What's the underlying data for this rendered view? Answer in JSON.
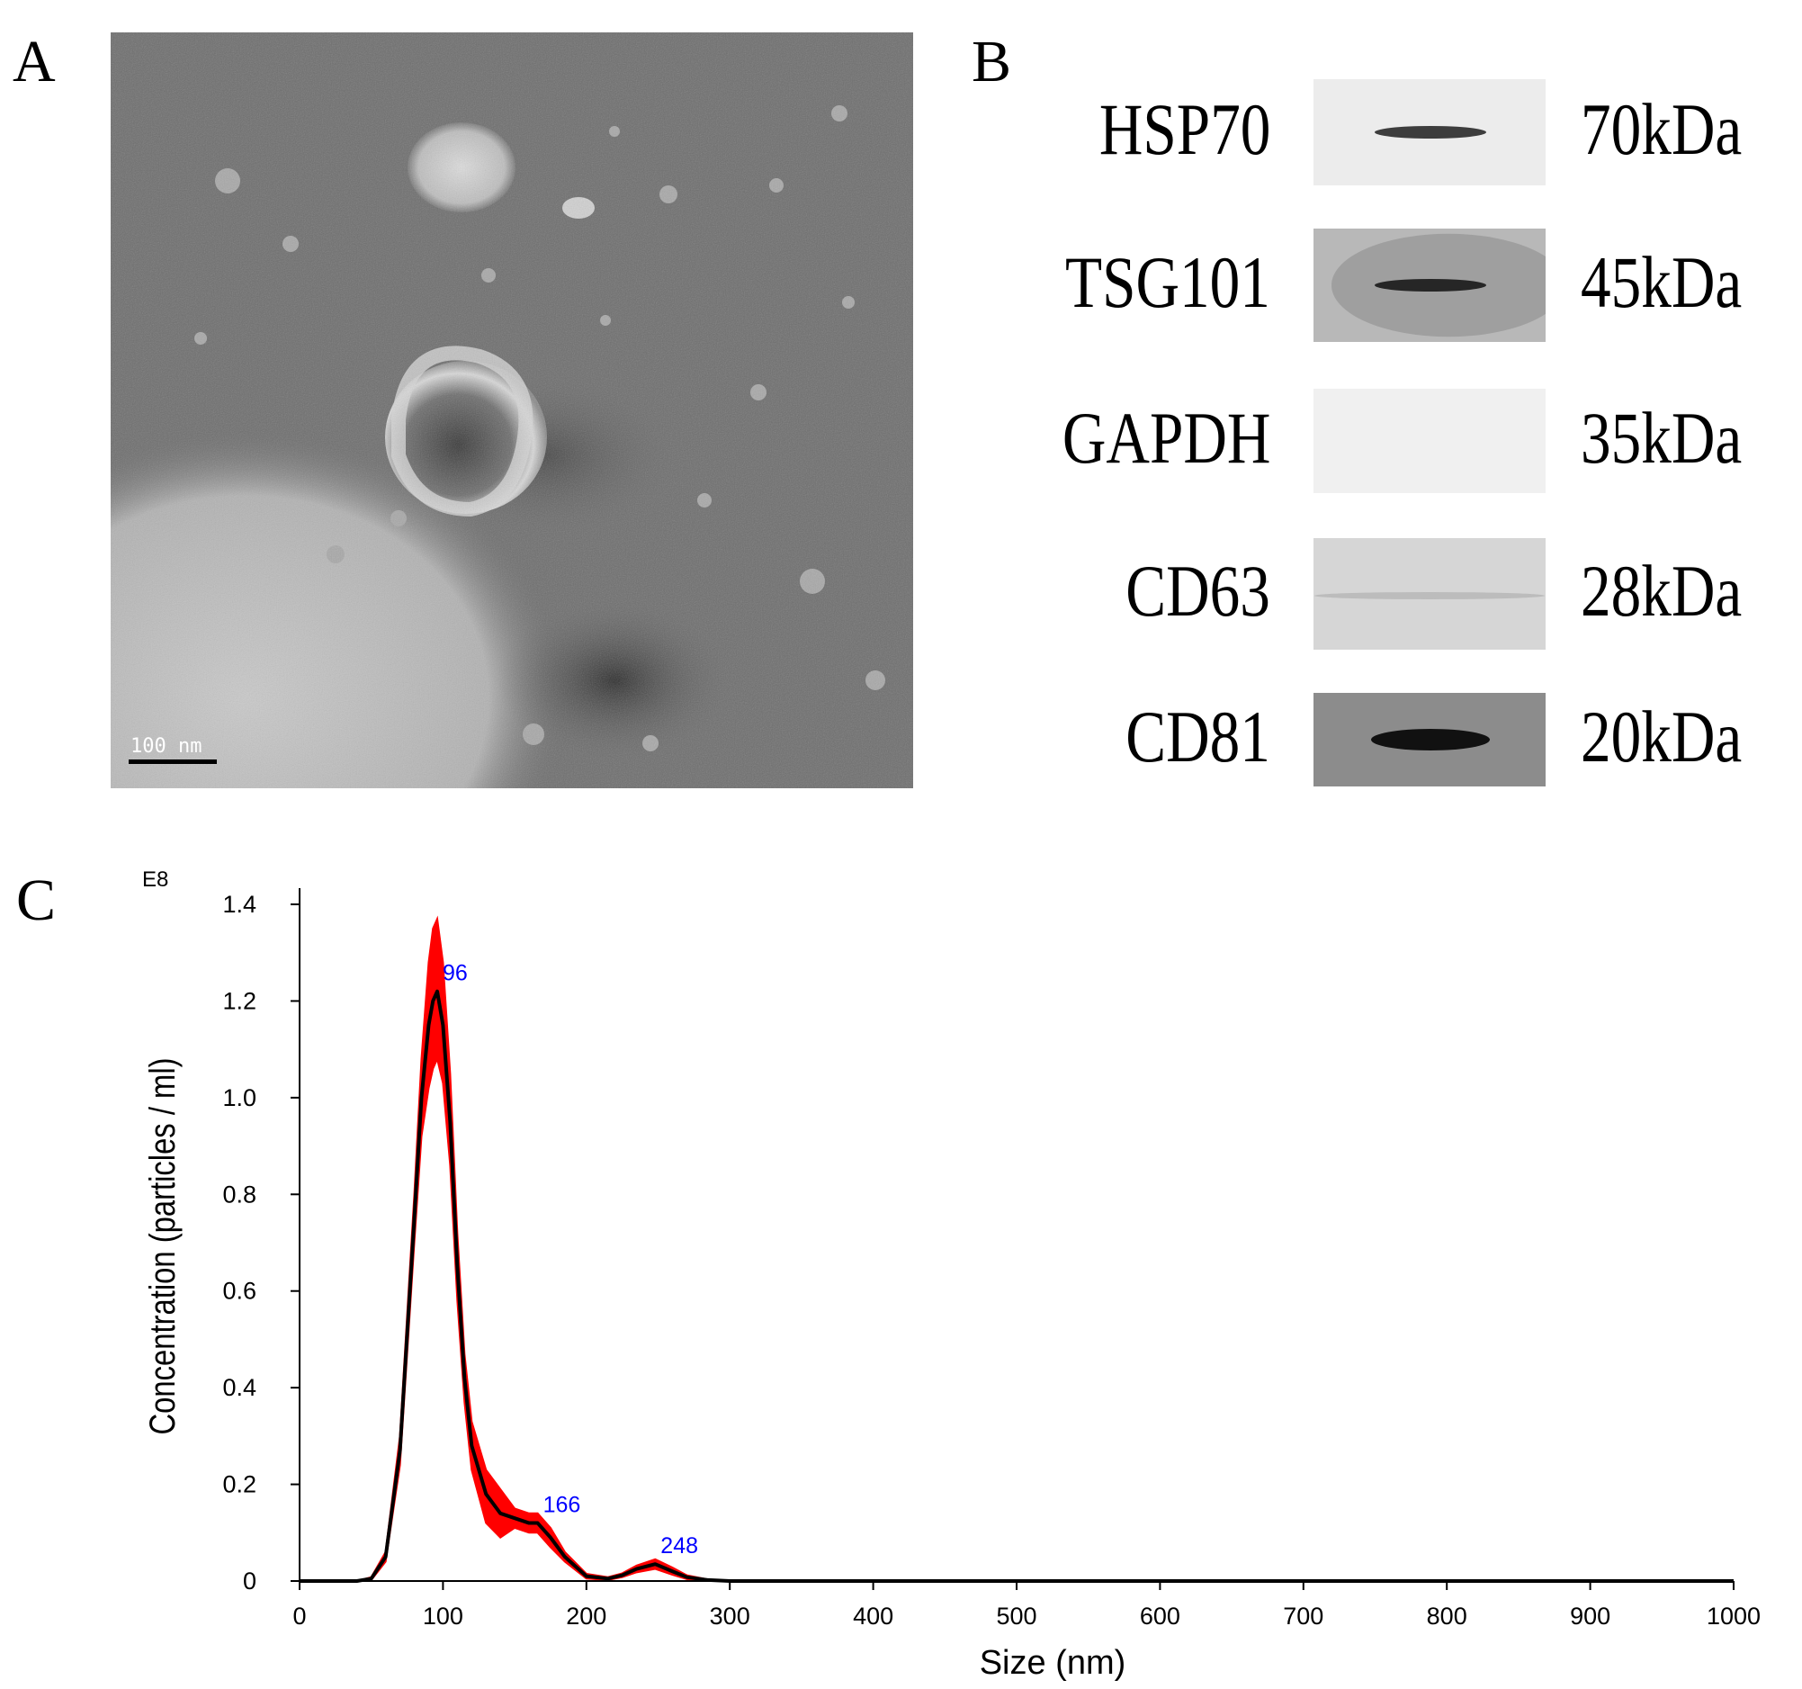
{
  "figure": {
    "panel_labels": [
      "A",
      "B",
      "C"
    ]
  },
  "panel_a": {
    "scale_bar_label": "100 nm"
  },
  "panel_b": {
    "blots": [
      {
        "protein": "HSP70",
        "weight": "70kDa",
        "band": "dark-narrow",
        "intensity": 0.8
      },
      {
        "protein": "TSG101",
        "weight": "45kDa",
        "band": "dark-broad",
        "intensity": 0.85
      },
      {
        "protein": "GAPDH",
        "weight": "35kDa",
        "band": "none",
        "intensity": 0.0
      },
      {
        "protein": "CD63",
        "weight": "28kDa",
        "band": "faint",
        "intensity": 0.25
      },
      {
        "protein": "CD81",
        "weight": "20kDa",
        "band": "dark-strong",
        "intensity": 1.0
      }
    ]
  },
  "chart_data": {
    "type": "line",
    "title": "",
    "xlabel": "Size (nm)",
    "ylabel": "Concentration (particles / ml)",
    "y_multiplier_label": "E8",
    "xlim": [
      0,
      1000
    ],
    "ylim": [
      0,
      1.4
    ],
    "x_ticks": [
      "0",
      "100",
      "200",
      "300",
      "400",
      "500",
      "600",
      "700",
      "800",
      "900",
      "1000"
    ],
    "y_ticks": [
      "0",
      "0.2",
      "0.4",
      "0.6",
      "0.8",
      "1.0",
      "1.2",
      "1.4"
    ],
    "grid": false,
    "peak_labels": [
      {
        "x": 96,
        "y": 1.22,
        "label": "96"
      },
      {
        "x": 166,
        "y": 0.12,
        "label": "166"
      },
      {
        "x": 248,
        "y": 0.035,
        "label": "248"
      }
    ],
    "mean_series": {
      "x": [
        0,
        40,
        50,
        60,
        70,
        80,
        85,
        90,
        93,
        96,
        100,
        105,
        110,
        115,
        120,
        130,
        140,
        150,
        160,
        166,
        175,
        185,
        200,
        215,
        225,
        235,
        248,
        260,
        270,
        285,
        300,
        350,
        400,
        500,
        600,
        700,
        800,
        900,
        1000
      ],
      "y": [
        0,
        0,
        0.005,
        0.05,
        0.27,
        0.75,
        1.0,
        1.15,
        1.2,
        1.22,
        1.15,
        0.95,
        0.65,
        0.42,
        0.28,
        0.18,
        0.14,
        0.13,
        0.12,
        0.12,
        0.09,
        0.05,
        0.01,
        0.005,
        0.012,
        0.025,
        0.035,
        0.02,
        0.008,
        0.002,
        0,
        0,
        0,
        0,
        0,
        0,
        0,
        0,
        0
      ]
    },
    "error_band": {
      "x": [
        0,
        40,
        50,
        60,
        70,
        80,
        85,
        90,
        93,
        96,
        100,
        105,
        110,
        115,
        120,
        130,
        140,
        150,
        160,
        166,
        175,
        185,
        200,
        215,
        225,
        235,
        248,
        260,
        270,
        285,
        300,
        350,
        400,
        500,
        600,
        700,
        800,
        900,
        1000
      ],
      "upper": [
        0,
        0,
        0.008,
        0.06,
        0.3,
        0.8,
        1.08,
        1.28,
        1.35,
        1.37,
        1.28,
        1.05,
        0.72,
        0.47,
        0.33,
        0.23,
        0.19,
        0.15,
        0.14,
        0.14,
        0.11,
        0.06,
        0.015,
        0.008,
        0.016,
        0.032,
        0.045,
        0.028,
        0.012,
        0.003,
        0,
        0,
        0,
        0,
        0,
        0,
        0,
        0,
        0
      ],
      "lower": [
        0,
        0,
        0.002,
        0.04,
        0.24,
        0.7,
        0.92,
        1.02,
        1.06,
        1.08,
        1.03,
        0.86,
        0.58,
        0.37,
        0.23,
        0.12,
        0.09,
        0.11,
        0.1,
        0.1,
        0.07,
        0.04,
        0.005,
        0.002,
        0.008,
        0.018,
        0.025,
        0.013,
        0.004,
        0.001,
        0,
        0,
        0,
        0,
        0,
        0,
        0,
        0,
        0
      ]
    },
    "colors": {
      "mean": "#000000",
      "band": "#ff0000",
      "peak_label": "#0000ff"
    }
  }
}
